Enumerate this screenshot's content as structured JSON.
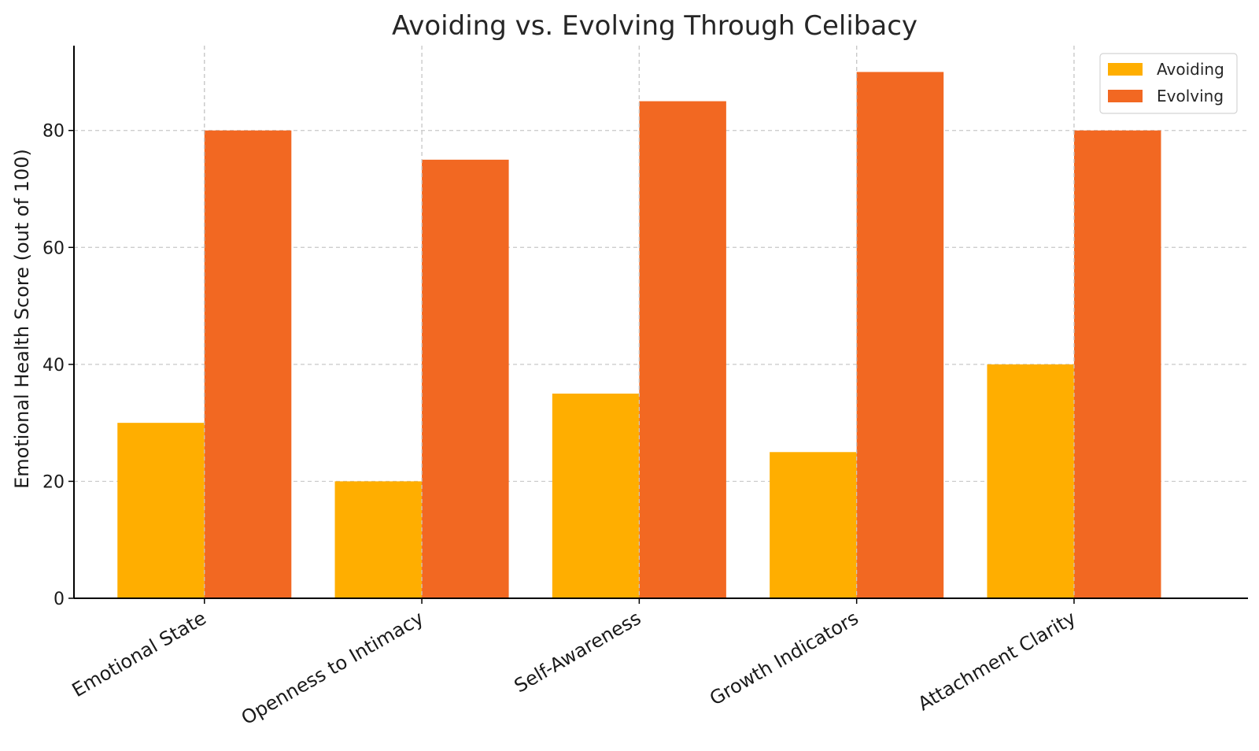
{
  "chart_data": {
    "type": "bar",
    "title": "Avoiding vs. Evolving Through Celibacy",
    "xlabel": "",
    "ylabel": "Emotional Health Score (out of 100)",
    "categories": [
      "Emotional State",
      "Openness to Intimacy",
      "Self-Awareness",
      "Growth Indicators",
      "Attachment Clarity"
    ],
    "series": [
      {
        "name": "Avoiding",
        "color": "#FFAE00",
        "values": [
          30,
          20,
          35,
          25,
          40
        ]
      },
      {
        "name": "Evolving",
        "color": "#F26822",
        "values": [
          80,
          75,
          85,
          90,
          80
        ]
      }
    ],
    "ylim": [
      0,
      94.5
    ],
    "yticks": [
      "0",
      "20",
      "40",
      "60",
      "80"
    ],
    "grid": true,
    "legend_position": "top-right"
  }
}
